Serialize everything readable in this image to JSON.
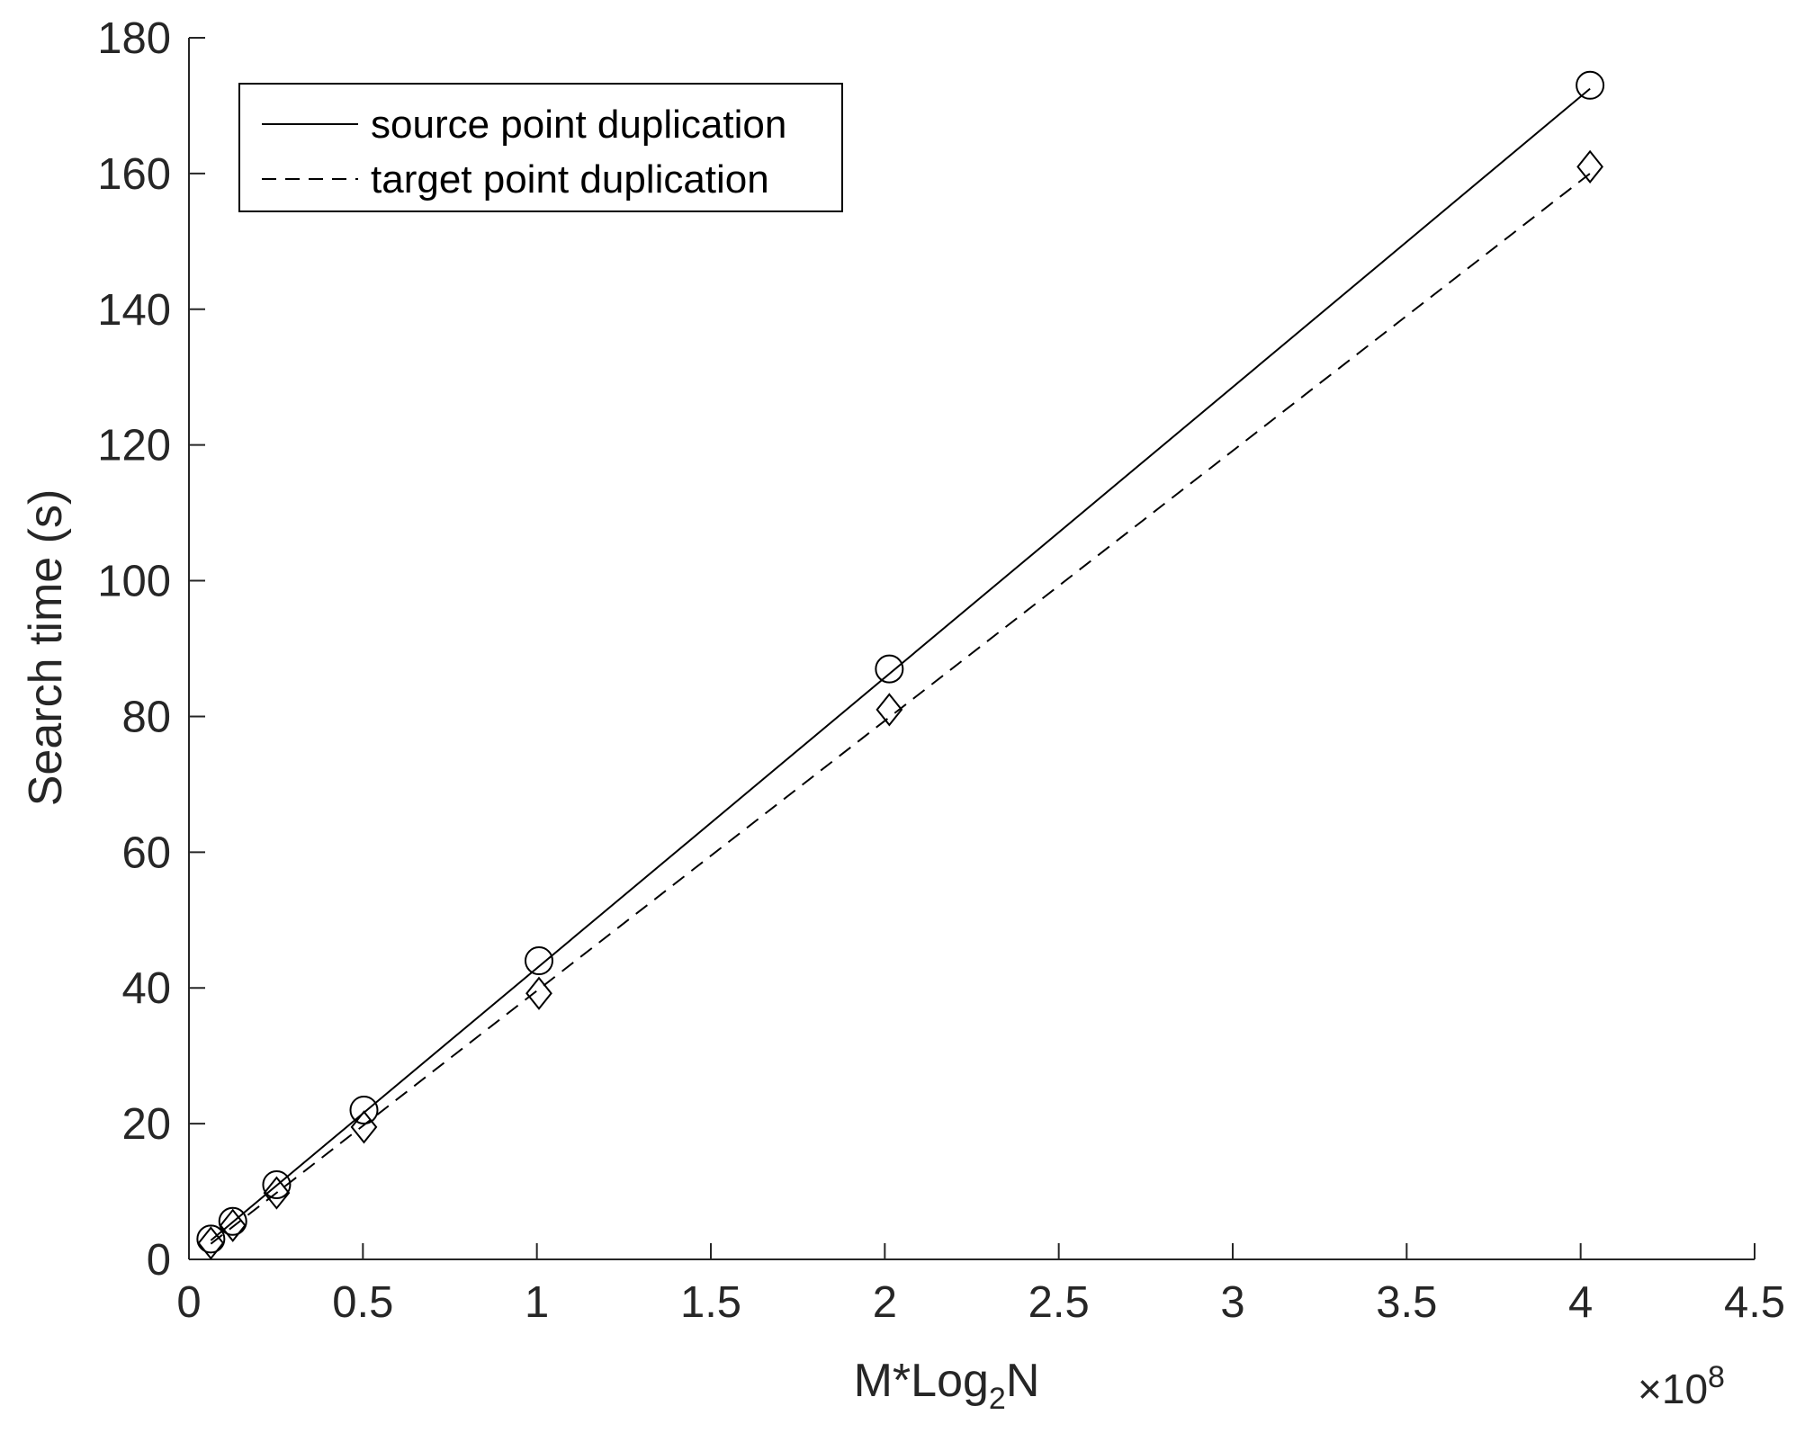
{
  "chart_data": {
    "type": "line",
    "xlabel": "M*Log",
    "xlabel_sub": "2",
    "xlabel_tail": "N",
    "ylabel": "Search time (s)",
    "x_exponent_prefix": "×10",
    "x_exponent_power": "8",
    "xlim": [
      0,
      4.5
    ],
    "ylim": [
      0,
      180
    ],
    "xticks": [
      0,
      0.5,
      1,
      1.5,
      2,
      2.5,
      3,
      3.5,
      4,
      4.5
    ],
    "xtick_labels": [
      "0",
      "0.5",
      "1",
      "1.5",
      "2",
      "2.5",
      "3",
      "3.5",
      "4",
      "4.5"
    ],
    "yticks": [
      0,
      20,
      40,
      60,
      80,
      100,
      120,
      140,
      160,
      180
    ],
    "ytick_labels": [
      "0",
      "20",
      "40",
      "60",
      "80",
      "100",
      "120",
      "140",
      "160",
      "180"
    ],
    "grid": false,
    "legend_position": "top-left",
    "series": [
      {
        "name": "source point duplication",
        "line_style": "solid",
        "marker": "circle",
        "color": "#000000",
        "x": [
          0.063,
          0.126,
          0.252,
          0.503,
          1.006,
          2.013,
          4.027
        ],
        "y": [
          3.0,
          5.6,
          11.0,
          22.0,
          44.0,
          87.0,
          173.0
        ],
        "fit_x": [
          0.063,
          4.027
        ],
        "fit_y": [
          2.8,
          172.5
        ]
      },
      {
        "name": "target point duplication",
        "line_style": "dashed",
        "marker": "diamond",
        "color": "#000000",
        "x": [
          0.063,
          0.126,
          0.252,
          0.503,
          1.006,
          2.013,
          4.027
        ],
        "y": [
          2.4,
          5.0,
          9.8,
          19.5,
          39.2,
          81.0,
          161.0
        ],
        "fit_x": [
          0.063,
          4.027
        ],
        "fit_y": [
          2.3,
          160.0
        ]
      }
    ]
  }
}
